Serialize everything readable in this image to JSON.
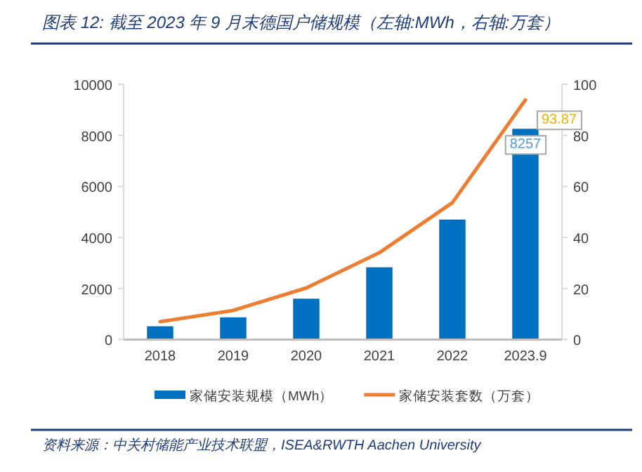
{
  "chart_data": {
    "type": "bar",
    "title": "图表 12: 截至 2023 年 9 月末德国户储规模（左轴:MWh，右轴:万套）",
    "categories": [
      "2018",
      "2019",
      "2020",
      "2021",
      "2022",
      "2023.9"
    ],
    "series": [
      {
        "name": "家储安装规模（MWh）",
        "type": "bar",
        "color": "#0070c0",
        "values": [
          520,
          870,
          1600,
          2830,
          4700,
          8257
        ],
        "value_labels": [
          null,
          null,
          null,
          null,
          null,
          "8257"
        ]
      },
      {
        "name": "家储安装套数（万套）",
        "type": "line",
        "axis": "y2",
        "color": "#ed7d31",
        "values": [
          7,
          11.4,
          20.2,
          34,
          53.6,
          93.87
        ],
        "value_labels": [
          null,
          null,
          null,
          null,
          null,
          "93.87"
        ]
      }
    ],
    "ylim": [
      0,
      10000
    ],
    "yticks": [
      0,
      2000,
      4000,
      6000,
      8000,
      10000
    ],
    "y2lim": [
      0,
      100
    ],
    "y2ticks": [
      0,
      20,
      40,
      60,
      80,
      100
    ],
    "legend": "bottom",
    "grid": false,
    "marker": "none",
    "line_style": "solid",
    "annotations": [
      "资料来源：中关村储能产业技术联盟，ISEA&RWTH Aachen University"
    ]
  }
}
